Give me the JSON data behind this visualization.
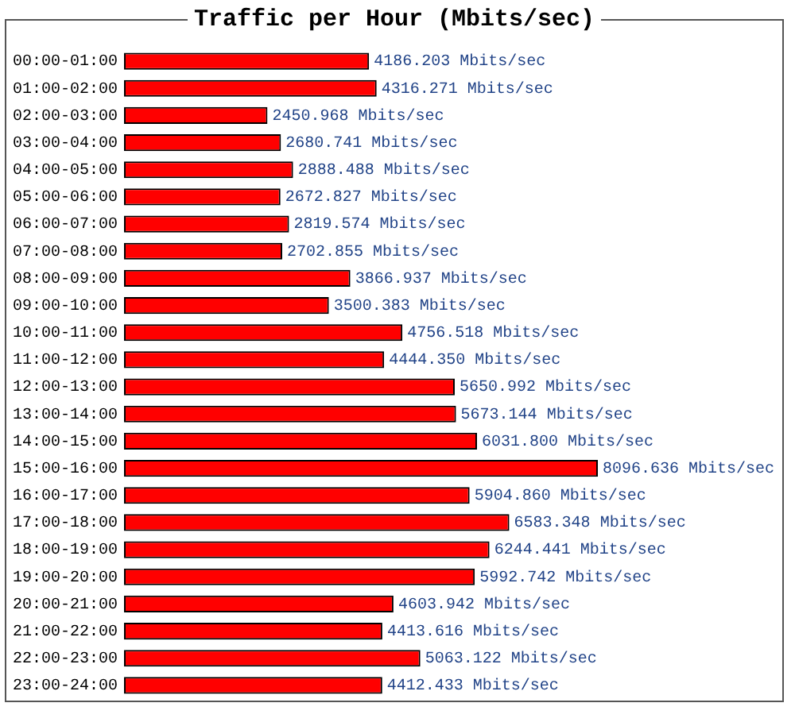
{
  "chart_data": {
    "type": "bar",
    "orientation": "horizontal",
    "title": "Traffic per Hour (Mbits/sec)",
    "tick_labels": "y",
    "categories": [
      "00:00-01:00",
      "01:00-02:00",
      "02:00-03:00",
      "03:00-04:00",
      "04:00-05:00",
      "05:00-06:00",
      "06:00-07:00",
      "07:00-08:00",
      "08:00-09:00",
      "09:00-10:00",
      "10:00-11:00",
      "11:00-12:00",
      "12:00-13:00",
      "13:00-14:00",
      "14:00-15:00",
      "15:00-16:00",
      "16:00-17:00",
      "17:00-18:00",
      "18:00-19:00",
      "19:00-20:00",
      "20:00-21:00",
      "21:00-22:00",
      "22:00-23:00",
      "23:00-24:00"
    ],
    "values": [
      4186.203,
      4316.271,
      2450.968,
      2680.741,
      2888.488,
      2672.827,
      2819.574,
      2702.855,
      3866.937,
      3500.383,
      4756.518,
      4444.35,
      5650.992,
      5673.144,
      6031.8,
      8096.636,
      5904.86,
      6583.348,
      6244.441,
      5992.742,
      4603.942,
      4413.616,
      5063.122,
      4412.433
    ],
    "value_labels": [
      "4186.203 Mbits/sec",
      "4316.271 Mbits/sec",
      "2450.968 Mbits/sec",
      "2680.741 Mbits/sec",
      "2888.488 Mbits/sec",
      "2672.827 Mbits/sec",
      "2819.574 Mbits/sec",
      "2702.855 Mbits/sec",
      "3866.937 Mbits/sec",
      "3500.383 Mbits/sec",
      "4756.518 Mbits/sec",
      "4444.350 Mbits/sec",
      "5650.992 Mbits/sec",
      "5673.144 Mbits/sec",
      "6031.800 Mbits/sec",
      "8096.636 Mbits/sec",
      "5904.860 Mbits/sec",
      "6583.348 Mbits/sec",
      "6244.441 Mbits/sec",
      "5992.742 Mbits/sec",
      "4603.942 Mbits/sec",
      "4413.616 Mbits/sec",
      "5063.122 Mbits/sec",
      "4412.433 Mbits/sec"
    ],
    "color": "#ff0000"
  }
}
